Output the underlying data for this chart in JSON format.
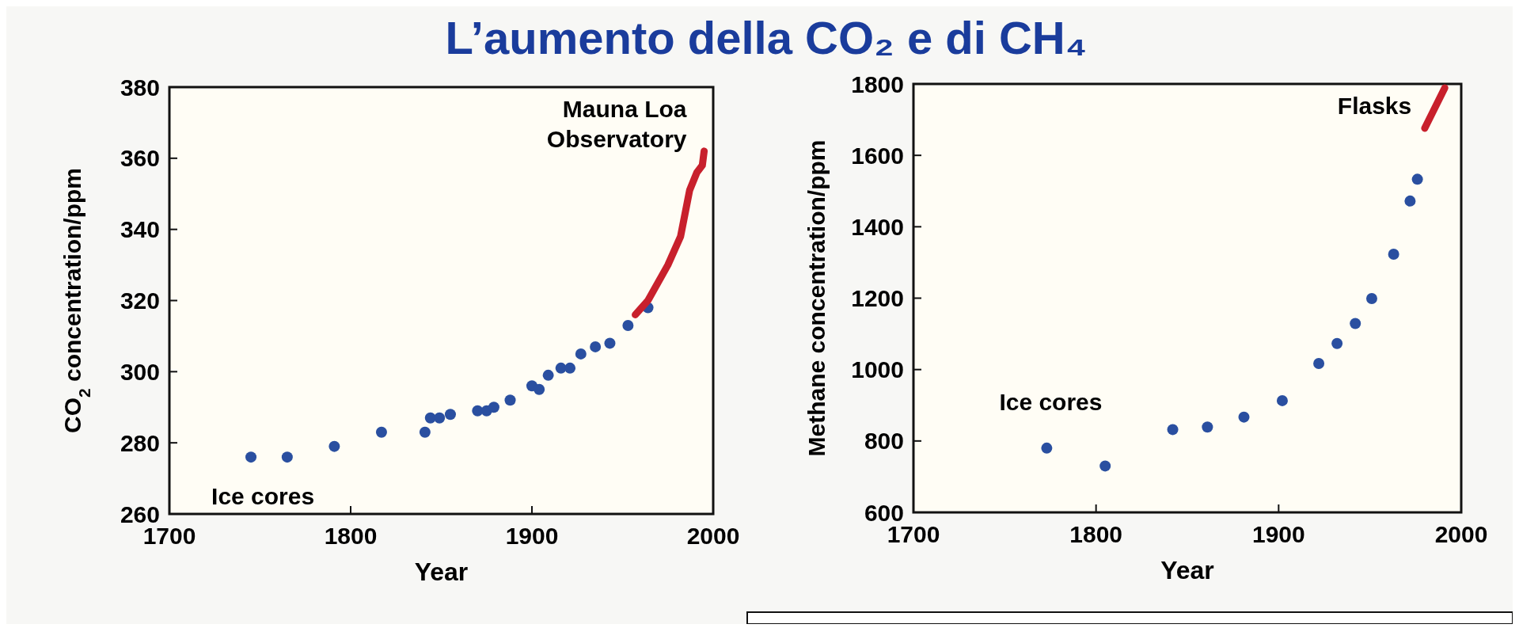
{
  "chart_data": [
    {
      "type": "scatter",
      "title": "L’aumento della CO₂ e di CH₄",
      "xlabel": "Year",
      "ylabel": "CO$_{2}$ concentration/ppm",
      "xlim": [
        1700,
        2000
      ],
      "ylim": [
        260,
        380
      ],
      "xticks": [
        1700,
        1800,
        1900,
        2000
      ],
      "yticks": [
        260,
        280,
        300,
        320,
        340,
        360,
        380
      ],
      "marker": "circle",
      "series": [
        {
          "name": "Ice cores",
          "color": "#2a4fa0",
          "x": [
            1745,
            1765,
            1791,
            1817,
            1841,
            1844,
            1849,
            1855,
            1870,
            1875,
            1879,
            1888,
            1900,
            1904,
            1909,
            1916,
            1921,
            1927,
            1935,
            1943,
            1953,
            1964
          ],
          "values": [
            276,
            276,
            279,
            283,
            283,
            287,
            287,
            288,
            289,
            289,
            290,
            292,
            296,
            295,
            299,
            301,
            301,
            305,
            307,
            308,
            313,
            318
          ]
        },
        {
          "name": "Mauna Loa Observatory",
          "type": "line",
          "marker": "none",
          "color": "#c8202c",
          "x": [
            1957,
            1964,
            1975,
            1982,
            1987,
            1991,
            1994,
            1995
          ],
          "values": [
            316,
            320,
            330,
            338,
            351,
            356,
            358,
            362
          ]
        }
      ]
    },
    {
      "type": "scatter",
      "xlabel": "Year",
      "ylabel": "Methane concentration/ppm",
      "xlim": [
        1700,
        2000
      ],
      "ylim": [
        600,
        1800
      ],
      "xticks": [
        1700,
        1800,
        1900,
        2000
      ],
      "yticks": [
        600,
        800,
        1000,
        1200,
        1400,
        1600,
        1800
      ],
      "marker": "circle",
      "series": [
        {
          "name": "Ice cores",
          "color": "#2a4fa0",
          "x": [
            1773,
            1805,
            1842,
            1861,
            1881,
            1902,
            1922,
            1932,
            1942,
            1951,
            1963,
            1972,
            1976
          ],
          "values": [
            780,
            730,
            832,
            839,
            867,
            913,
            1017,
            1073,
            1129,
            1199,
            1323,
            1472,
            1533
          ]
        },
        {
          "name": "Flasks",
          "type": "line",
          "marker": "none",
          "color": "#c8202c",
          "x": [
            1980,
            1991
          ],
          "values": [
            1676,
            1789
          ]
        }
      ]
    }
  ]
}
